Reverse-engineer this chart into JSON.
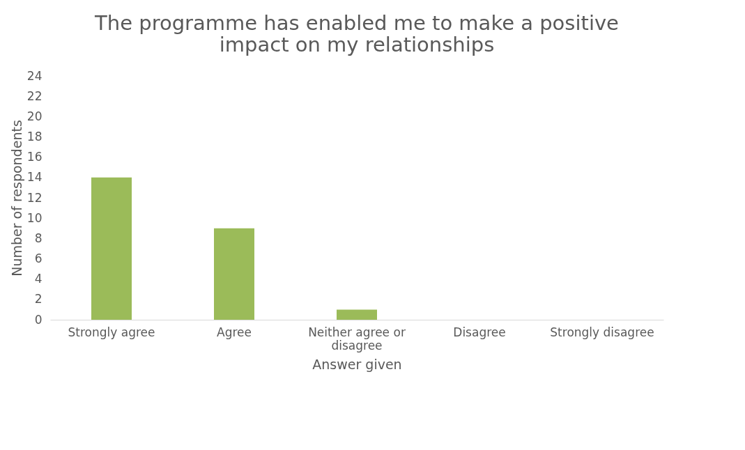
{
  "chart_data": {
    "type": "bar",
    "title": "The programme has enabled me to make a positive impact on my relationships",
    "xlabel": "Answer given",
    "ylabel": "Number of respondents",
    "categories": [
      "Strongly agree",
      "Agree",
      "Neither agree or disagree",
      "Disagree",
      "Strongly disagree"
    ],
    "values": [
      14,
      9,
      1,
      0,
      0
    ],
    "color": "#9bbb59",
    "ylim": [
      0,
      24
    ],
    "yticks": [
      0,
      2,
      4,
      6,
      8,
      10,
      12,
      14,
      16,
      18,
      20,
      22,
      24
    ],
    "grid": false
  }
}
